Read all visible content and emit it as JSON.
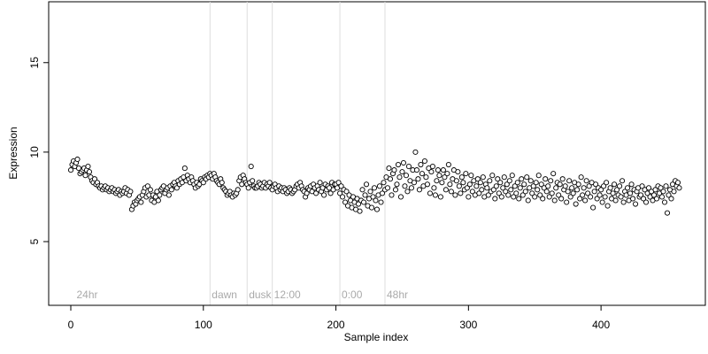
{
  "chart_data": {
    "type": "scatter",
    "xlabel": "Sample index",
    "ylabel": "Expression",
    "xlim": [
      -16.7,
      478.7
    ],
    "ylim": [
      1.44,
      18.4
    ],
    "xticks": [
      0,
      100,
      200,
      300,
      400
    ],
    "yticks": [
      5,
      10,
      15
    ],
    "vlines": [
      105,
      133,
      152,
      203,
      237
    ],
    "annotations": [
      {
        "label": "24hr",
        "x": 3
      },
      {
        "label": "dawn",
        "x": 105
      },
      {
        "label": "dusk",
        "x": 133
      },
      {
        "label": "12:00",
        "x": 152
      },
      {
        "label": "0:00",
        "x": 203
      },
      {
        "label": "48hr",
        "x": 237
      }
    ],
    "annotation_y": 2.0,
    "color": "#ffffff",
    "values": [
      9.0,
      9.3,
      9.5,
      9.2,
      9.4,
      9.6,
      9.1,
      8.8,
      8.9,
      9.0,
      9.1,
      8.7,
      9.0,
      9.2,
      8.9,
      8.6,
      8.4,
      8.3,
      8.5,
      8.2,
      8.3,
      8.1,
      8.0,
      8.1,
      7.9,
      8.0,
      8.1,
      7.9,
      8.0,
      7.8,
      7.9,
      8.0,
      7.8,
      7.9,
      7.7,
      7.8,
      7.9,
      7.6,
      7.8,
      7.7,
      7.8,
      8.0,
      7.7,
      7.9,
      7.6,
      7.8,
      6.8,
      7.0,
      7.2,
      7.1,
      7.3,
      7.4,
      7.5,
      7.2,
      7.6,
      7.8,
      8.0,
      7.5,
      8.1,
      7.6,
      7.9,
      7.3,
      7.6,
      7.2,
      7.5,
      7.8,
      7.3,
      7.6,
      7.9,
      8.0,
      8.1,
      7.7,
      7.9,
      8.0,
      7.6,
      8.1,
      7.9,
      8.2,
      8.3,
      8.1,
      8.0,
      8.4,
      8.2,
      8.5,
      8.3,
      8.6,
      9.1,
      8.4,
      8.7,
      8.5,
      8.3,
      8.6,
      8.4,
      8.2,
      8.0,
      8.3,
      8.1,
      8.2,
      8.5,
      8.4,
      8.3,
      8.6,
      8.5,
      8.7,
      8.6,
      8.8,
      8.7,
      8.5,
      8.8,
      8.6,
      8.4,
      8.3,
      8.2,
      8.5,
      8.3,
      8.0,
      7.9,
      7.8,
      7.6,
      7.7,
      7.8,
      7.6,
      7.5,
      7.7,
      7.6,
      7.7,
      7.9,
      8.4,
      8.6,
      8.2,
      8.7,
      8.5,
      8.3,
      8.2,
      8.0,
      8.3,
      9.2,
      8.4,
      8.1,
      8.0,
      8.0,
      8.1,
      8.3,
      8.2,
      8.0,
      8.1,
      8.3,
      8.0,
      8.2,
      8.1,
      8.3,
      8.0,
      7.9,
      8.1,
      8.2,
      8.0,
      7.8,
      8.1,
      7.9,
      8.0,
      7.8,
      8.0,
      7.9,
      7.7,
      7.8,
      8.0,
      7.9,
      7.7,
      7.8,
      7.9,
      8.1,
      8.2,
      8.0,
      8.3,
      8.1,
      7.9,
      7.8,
      7.5,
      7.7,
      8.0,
      7.9,
      8.1,
      7.8,
      8.2,
      8.0,
      7.7,
      8.1,
      7.9,
      8.3,
      7.8,
      8.0,
      7.6,
      8.2,
      7.9,
      8.1,
      8.0,
      7.7,
      8.3,
      7.9,
      8.2,
      8.2,
      8.0,
      8.3,
      7.7,
      8.1,
      7.5,
      7.9,
      7.2,
      7.8,
      7.0,
      7.6,
      7.3,
      6.9,
      7.5,
      7.2,
      6.8,
      7.4,
      7.1,
      6.7,
      7.3,
      7.9,
      7.2,
      7.6,
      8.2,
      7.0,
      7.4,
      7.8,
      6.9,
      7.5,
      8.0,
      7.3,
      6.8,
      7.6,
      8.1,
      7.2,
      7.7,
      8.3,
      7.9,
      8.6,
      8.0,
      9.1,
      8.5,
      7.6,
      8.8,
      9.0,
      7.9,
      8.2,
      9.3,
      8.6,
      7.5,
      8.9,
      9.4,
      8.1,
      8.7,
      7.8,
      9.2,
      8.4,
      8.0,
      9.0,
      8.3,
      10.0,
      9.0,
      8.5,
      7.9,
      9.3,
      8.8,
      8.1,
      9.5,
      8.6,
      8.2,
      9.1,
      7.7,
      8.9,
      9.2,
      8.0,
      7.6,
      8.4,
      9.0,
      8.7,
      7.5,
      8.3,
      9.0,
      8.6,
      7.9,
      8.8,
      9.3,
      8.2,
      7.8,
      8.5,
      9.0,
      7.6,
      8.4,
      8.9,
      8.1,
      7.7,
      8.6,
      8.3,
      7.9,
      8.8,
      8.0,
      7.5,
      8.2,
      8.7,
      7.8,
      8.4,
      7.6,
      8.1,
      8.5,
      7.7,
      8.3,
      7.9,
      8.6,
      7.5,
      8.2,
      8.0,
      7.6,
      8.4,
      7.8,
      8.7,
      7.9,
      7.4,
      8.1,
      8.5,
      7.7,
      8.3,
      7.5,
      8.0,
      8.6,
      7.8,
      8.2,
      7.6,
      8.4,
      7.9,
      8.7,
      7.5,
      8.1,
      7.7,
      8.3,
      7.4,
      8.0,
      8.5,
      7.6,
      8.2,
      7.8,
      8.6,
      7.3,
      8.0,
      8.4,
      7.7,
      8.1,
      7.5,
      8.3,
      7.9,
      8.7,
      7.6,
      8.2,
      7.4,
      8.0,
      8.5,
      7.8,
      8.1,
      7.5,
      8.4,
      7.7,
      8.8,
      7.3,
      8.0,
      8.3,
      7.6,
      8.2,
      7.4,
      8.5,
      7.9,
      8.1,
      7.2,
      7.8,
      8.4,
      7.5,
      8.0,
      7.7,
      8.3,
      7.1,
      7.9,
      8.2,
      7.4,
      8.6,
      7.6,
      8.0,
      7.3,
      8.4,
      7.7,
      8.1,
      7.5,
      8.3,
      6.9,
      7.8,
      8.2,
      7.4,
      8.0,
      7.6,
      7.9,
      7.2,
      8.1,
      7.5,
      8.3,
      7.0,
      7.8,
      8.0,
      7.4,
      7.7,
      8.2,
      7.3,
      7.9,
      7.6,
      8.1,
      7.5,
      8.4,
      7.2,
      7.8,
      7.6,
      8.0,
      7.3,
      7.7,
      8.2,
      7.4,
      7.9,
      7.1,
      7.8,
      8.0,
      7.5,
      7.6,
      8.1,
      7.4,
      7.9,
      7.2,
      7.7,
      8.0,
      7.5,
      7.8,
      7.3,
      7.6,
      7.9,
      7.4,
      8.1,
      7.7,
      8.0,
      7.5,
      7.8,
      7.2,
      8.1,
      6.6,
      7.6,
      7.9,
      7.4,
      8.2,
      7.8,
      8.4,
      8.1,
      8.3,
      8.0
    ]
  }
}
